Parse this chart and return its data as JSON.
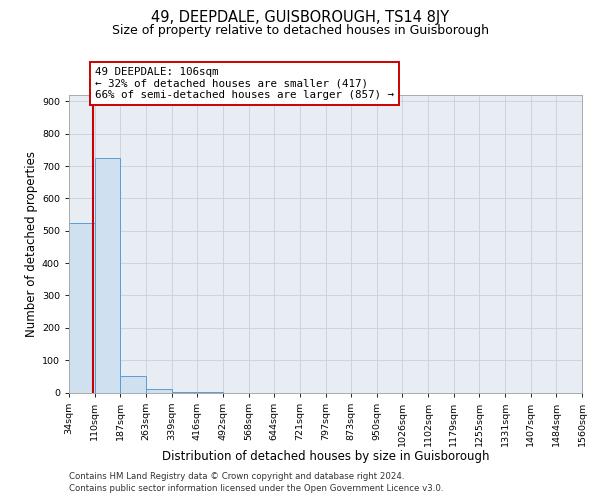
{
  "title": "49, DEEPDALE, GUISBOROUGH, TS14 8JY",
  "subtitle": "Size of property relative to detached houses in Guisborough",
  "xlabel": "Distribution of detached houses by size in Guisborough",
  "ylabel": "Number of detached properties",
  "bin_edges": [
    34,
    110,
    187,
    263,
    339,
    416,
    492,
    568,
    644,
    721,
    797,
    873,
    950,
    1026,
    1102,
    1179,
    1255,
    1331,
    1407,
    1484,
    1560
  ],
  "bin_counts": [
    525,
    725,
    50,
    10,
    2,
    1,
    0,
    0,
    0,
    0,
    0,
    0,
    0,
    0,
    0,
    0,
    0,
    0,
    0,
    0
  ],
  "bar_color": "#cfe0f0",
  "bar_edge_color": "#5b9bd5",
  "property_size": 106,
  "annotation_line1": "49 DEEPDALE: 106sqm",
  "annotation_line2": "← 32% of detached houses are smaller (417)",
  "annotation_line3": "66% of semi-detached houses are larger (857) →",
  "annotation_box_color": "#ffffff",
  "annotation_box_edge": "#cc0000",
  "red_line_color": "#cc0000",
  "ylim": [
    0,
    920
  ],
  "yticks": [
    0,
    100,
    200,
    300,
    400,
    500,
    600,
    700,
    800,
    900
  ],
  "grid_color": "#c8d0da",
  "bg_color": "#e8edf4",
  "footer_line1": "Contains HM Land Registry data © Crown copyright and database right 2024.",
  "footer_line2": "Contains public sector information licensed under the Open Government Licence v3.0.",
  "title_fontsize": 10.5,
  "subtitle_fontsize": 9.0,
  "axis_label_fontsize": 8.5,
  "tick_fontsize": 6.8,
  "annot_fontsize": 7.8,
  "footer_fontsize": 6.2
}
